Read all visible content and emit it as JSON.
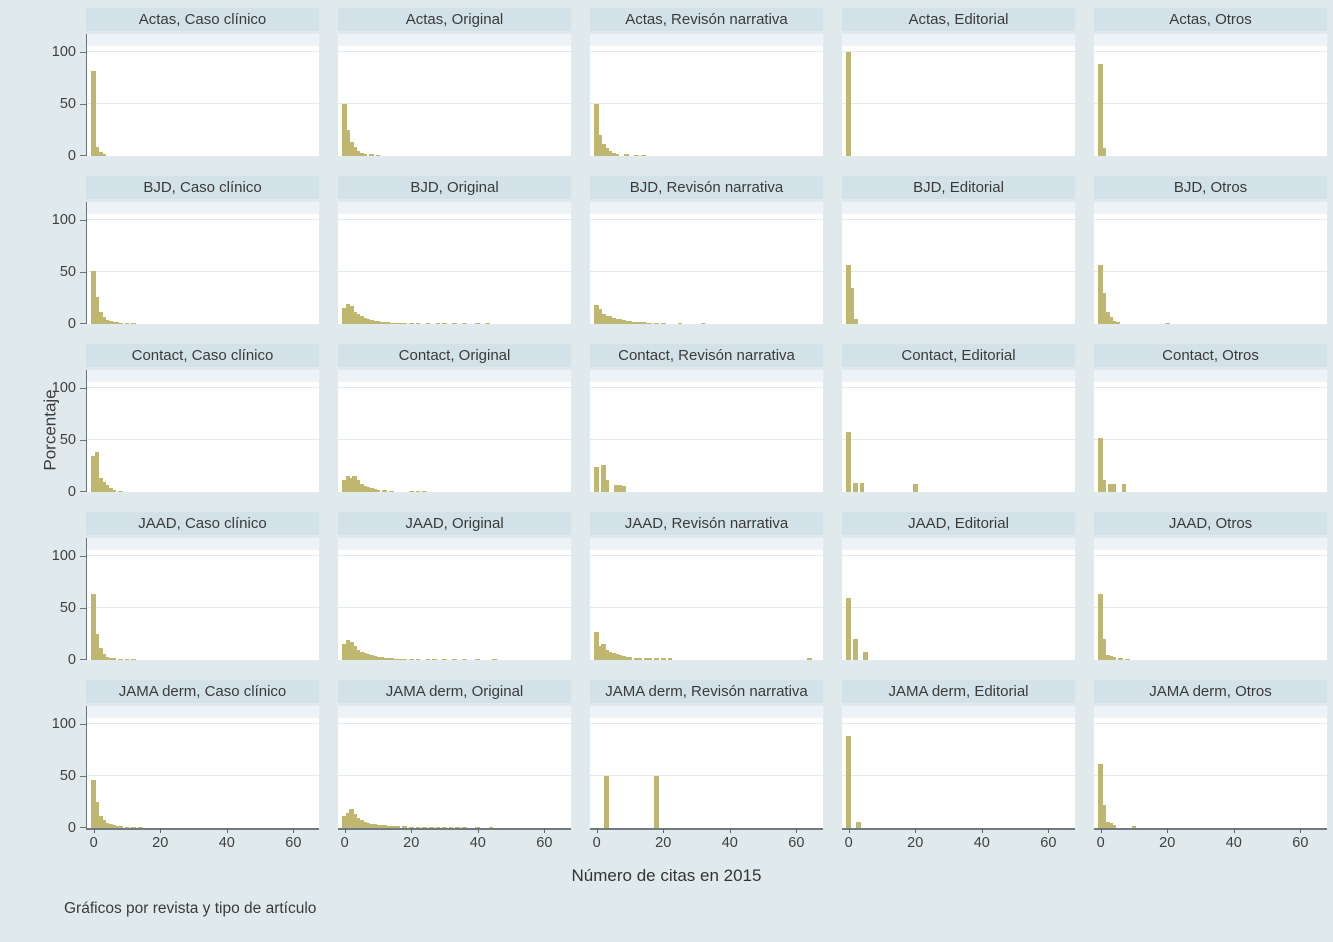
{
  "colors": {
    "background": "#e0eaed",
    "header_fill": "#d3e2e9",
    "bar": "#bfb670",
    "plot_bg": "#ffffff",
    "gridline": "#e4e9ec",
    "axis": "#6b7478"
  },
  "chart_data": {
    "type": "bar",
    "subtype": "faceted-histogram-grid",
    "title": "",
    "ylabel": "Porcentaje",
    "xlabel": "Número de citas en 2015",
    "caption": "Gráficos por revista y tipo de artículo",
    "legend": "none",
    "grid": "horizontal gridlines at y=50 and y=100",
    "y_ticks": [
      100,
      50,
      0
    ],
    "x_ticks": [
      0,
      20,
      40,
      60
    ],
    "y_range": [
      0,
      100
    ],
    "x_range": [
      -2,
      68
    ],
    "facet_rows": [
      "Actas",
      "BJD",
      "Contact",
      "JAAD",
      "JAMA derm"
    ],
    "facet_cols": [
      "Caso clínico",
      "Original",
      "Revisón narrativa",
      "Editorial",
      "Otros"
    ],
    "bar_unit_width": 1.4,
    "panels": [
      {
        "title": "Actas, Caso clínico",
        "bars": [
          [
            0,
            82
          ],
          [
            1,
            9
          ],
          [
            2,
            4
          ],
          [
            3,
            2
          ]
        ]
      },
      {
        "title": "Actas, Original",
        "bars": [
          [
            0,
            50
          ],
          [
            1,
            25
          ],
          [
            2,
            13
          ],
          [
            3,
            9
          ],
          [
            4,
            5
          ],
          [
            5,
            3
          ],
          [
            6,
            2
          ],
          [
            8,
            2
          ],
          [
            10,
            1
          ]
        ]
      },
      {
        "title": "Actas, Revisón narrativa",
        "bars": [
          [
            0,
            50
          ],
          [
            1,
            20
          ],
          [
            2,
            12
          ],
          [
            3,
            8
          ],
          [
            4,
            5
          ],
          [
            5,
            3
          ],
          [
            6,
            2
          ],
          [
            9,
            2
          ],
          [
            12,
            1
          ],
          [
            14,
            1
          ]
        ]
      },
      {
        "title": "Actas, Editorial",
        "bars": [
          [
            0,
            100
          ]
        ]
      },
      {
        "title": "Actas, Otros",
        "bars": [
          [
            0,
            88
          ],
          [
            1,
            8
          ]
        ]
      },
      {
        "title": "BJD, Caso clínico",
        "bars": [
          [
            0,
            51
          ],
          [
            1,
            26
          ],
          [
            2,
            12
          ],
          [
            3,
            7
          ],
          [
            4,
            4
          ],
          [
            5,
            3
          ],
          [
            6,
            2
          ],
          [
            7,
            2
          ],
          [
            8,
            1
          ],
          [
            10,
            1
          ],
          [
            12,
            1
          ]
        ]
      },
      {
        "title": "BJD, Original",
        "bars": [
          [
            0,
            15
          ],
          [
            1,
            19
          ],
          [
            2,
            17
          ],
          [
            3,
            12
          ],
          [
            4,
            10
          ],
          [
            5,
            8
          ],
          [
            6,
            6
          ],
          [
            7,
            5
          ],
          [
            8,
            4
          ],
          [
            9,
            3
          ],
          [
            10,
            3
          ],
          [
            11,
            2
          ],
          [
            12,
            2
          ],
          [
            13,
            2
          ],
          [
            14,
            1
          ],
          [
            15,
            1
          ],
          [
            16,
            1
          ],
          [
            17,
            1
          ],
          [
            18,
            1
          ],
          [
            20,
            1
          ],
          [
            22,
            1
          ],
          [
            25,
            1
          ],
          [
            28,
            1
          ],
          [
            30,
            1
          ],
          [
            33,
            1
          ],
          [
            36,
            1
          ],
          [
            40,
            1
          ],
          [
            43,
            1
          ]
        ]
      },
      {
        "title": "BJD, Revisón narrativa",
        "bars": [
          [
            0,
            18
          ],
          [
            1,
            14
          ],
          [
            2,
            10
          ],
          [
            3,
            8
          ],
          [
            4,
            8
          ],
          [
            5,
            6
          ],
          [
            6,
            5
          ],
          [
            7,
            5
          ],
          [
            8,
            4
          ],
          [
            9,
            3
          ],
          [
            10,
            3
          ],
          [
            11,
            2
          ],
          [
            12,
            2
          ],
          [
            13,
            2
          ],
          [
            14,
            2
          ],
          [
            15,
            1
          ],
          [
            16,
            1
          ],
          [
            18,
            1
          ],
          [
            20,
            1
          ],
          [
            25,
            1
          ],
          [
            32,
            1
          ]
        ]
      },
      {
        "title": "BJD, Editorial",
        "bars": [
          [
            0,
            57
          ],
          [
            1,
            35
          ],
          [
            2,
            5
          ]
        ]
      },
      {
        "title": "BJD, Otros",
        "bars": [
          [
            0,
            57
          ],
          [
            1,
            30
          ],
          [
            2,
            12
          ],
          [
            3,
            7
          ],
          [
            4,
            3
          ],
          [
            5,
            2
          ],
          [
            20,
            1
          ]
        ]
      },
      {
        "title": "Contact, Caso clínico",
        "bars": [
          [
            0,
            35
          ],
          [
            1,
            38
          ],
          [
            2,
            13
          ],
          [
            3,
            10
          ],
          [
            4,
            7
          ],
          [
            5,
            4
          ],
          [
            6,
            2
          ],
          [
            8,
            1
          ]
        ]
      },
      {
        "title": "Contact, Original",
        "bars": [
          [
            0,
            12
          ],
          [
            1,
            15
          ],
          [
            2,
            13
          ],
          [
            3,
            15
          ],
          [
            4,
            12
          ],
          [
            5,
            8
          ],
          [
            6,
            6
          ],
          [
            7,
            5
          ],
          [
            8,
            4
          ],
          [
            9,
            3
          ],
          [
            10,
            2
          ],
          [
            12,
            2
          ],
          [
            14,
            1
          ],
          [
            20,
            1
          ],
          [
            22,
            1
          ],
          [
            24,
            1
          ]
        ]
      },
      {
        "title": "Contact, Revisón narrativa",
        "bars": [
          [
            0,
            24
          ],
          [
            2,
            26
          ],
          [
            3,
            12
          ],
          [
            6,
            7
          ],
          [
            7,
            7
          ],
          [
            8,
            6
          ]
        ]
      },
      {
        "title": "Contact, Editorial",
        "bars": [
          [
            0,
            58
          ],
          [
            2,
            9
          ],
          [
            4,
            9
          ],
          [
            20,
            8
          ]
        ]
      },
      {
        "title": "Contact, Otros",
        "bars": [
          [
            0,
            52
          ],
          [
            1,
            12
          ],
          [
            3,
            8
          ],
          [
            4,
            8
          ],
          [
            7,
            8
          ]
        ]
      },
      {
        "title": "JAAD, Caso clínico",
        "bars": [
          [
            0,
            63
          ],
          [
            1,
            25
          ],
          [
            2,
            12
          ],
          [
            3,
            6
          ],
          [
            4,
            3
          ],
          [
            5,
            2
          ],
          [
            6,
            2
          ],
          [
            8,
            1
          ],
          [
            10,
            1
          ],
          [
            12,
            1
          ]
        ]
      },
      {
        "title": "JAAD, Original",
        "bars": [
          [
            0,
            15
          ],
          [
            1,
            19
          ],
          [
            2,
            17
          ],
          [
            3,
            13
          ],
          [
            4,
            10
          ],
          [
            5,
            8
          ],
          [
            6,
            7
          ],
          [
            7,
            6
          ],
          [
            8,
            5
          ],
          [
            9,
            4
          ],
          [
            10,
            3
          ],
          [
            11,
            3
          ],
          [
            12,
            2
          ],
          [
            13,
            2
          ],
          [
            14,
            2
          ],
          [
            15,
            1
          ],
          [
            16,
            1
          ],
          [
            17,
            1
          ],
          [
            18,
            1
          ],
          [
            20,
            1
          ],
          [
            22,
            1
          ],
          [
            25,
            1
          ],
          [
            27,
            1
          ],
          [
            30,
            1
          ],
          [
            33,
            1
          ],
          [
            36,
            1
          ],
          [
            40,
            1
          ],
          [
            45,
            1
          ]
        ]
      },
      {
        "title": "JAAD, Revisón narrativa",
        "bars": [
          [
            0,
            27
          ],
          [
            1,
            13
          ],
          [
            2,
            15
          ],
          [
            3,
            10
          ],
          [
            4,
            8
          ],
          [
            5,
            7
          ],
          [
            6,
            6
          ],
          [
            7,
            5
          ],
          [
            8,
            4
          ],
          [
            9,
            3
          ],
          [
            10,
            3
          ],
          [
            12,
            2
          ],
          [
            13,
            2
          ],
          [
            15,
            2
          ],
          [
            16,
            2
          ],
          [
            18,
            2
          ],
          [
            20,
            2
          ],
          [
            22,
            2
          ],
          [
            64,
            2
          ]
        ]
      },
      {
        "title": "JAAD, Editorial",
        "bars": [
          [
            0,
            60
          ],
          [
            2,
            20
          ],
          [
            5,
            8
          ]
        ]
      },
      {
        "title": "JAAD, Otros",
        "bars": [
          [
            0,
            63
          ],
          [
            1,
            20
          ],
          [
            2,
            5
          ],
          [
            3,
            4
          ],
          [
            4,
            3
          ],
          [
            6,
            2
          ],
          [
            8,
            1
          ]
        ]
      },
      {
        "title": "JAMA derm, Caso clínico",
        "bars": [
          [
            0,
            46
          ],
          [
            1,
            25
          ],
          [
            2,
            12
          ],
          [
            3,
            8
          ],
          [
            4,
            5
          ],
          [
            5,
            4
          ],
          [
            6,
            3
          ],
          [
            7,
            2
          ],
          [
            8,
            2
          ],
          [
            10,
            1
          ],
          [
            12,
            1
          ],
          [
            14,
            1
          ]
        ]
      },
      {
        "title": "JAMA derm, Original",
        "bars": [
          [
            0,
            12
          ],
          [
            1,
            14
          ],
          [
            2,
            18
          ],
          [
            3,
            13
          ],
          [
            4,
            10
          ],
          [
            5,
            8
          ],
          [
            6,
            6
          ],
          [
            7,
            5
          ],
          [
            8,
            4
          ],
          [
            9,
            4
          ],
          [
            10,
            3
          ],
          [
            11,
            3
          ],
          [
            12,
            3
          ],
          [
            13,
            2
          ],
          [
            14,
            2
          ],
          [
            15,
            2
          ],
          [
            16,
            2
          ],
          [
            18,
            2
          ],
          [
            20,
            1
          ],
          [
            22,
            1
          ],
          [
            24,
            1
          ],
          [
            26,
            1
          ],
          [
            28,
            1
          ],
          [
            30,
            1
          ],
          [
            32,
            1
          ],
          [
            34,
            1
          ],
          [
            36,
            1
          ],
          [
            40,
            1
          ],
          [
            44,
            1
          ]
        ]
      },
      {
        "title": "JAMA derm, Revisón narrativa",
        "bars": [
          [
            3,
            50
          ],
          [
            18,
            50
          ]
        ]
      },
      {
        "title": "JAMA derm, Editorial",
        "bars": [
          [
            0,
            88
          ],
          [
            3,
            6
          ]
        ]
      },
      {
        "title": "JAMA derm, Otros",
        "bars": [
          [
            0,
            62
          ],
          [
            1,
            22
          ],
          [
            2,
            6
          ],
          [
            3,
            5
          ],
          [
            4,
            3
          ],
          [
            10,
            2
          ]
        ]
      }
    ]
  }
}
